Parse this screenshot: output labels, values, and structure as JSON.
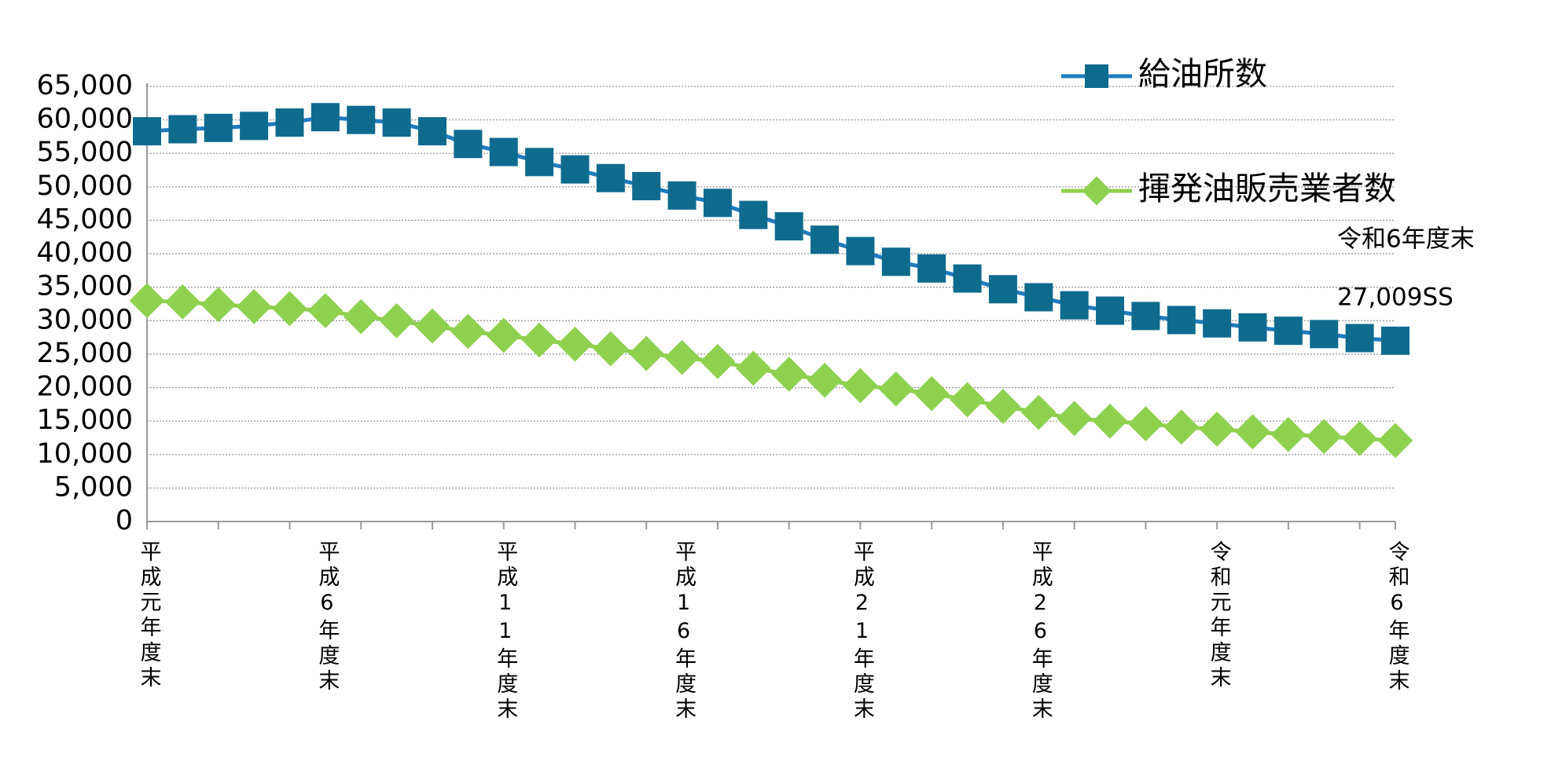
{
  "chart_data": {
    "type": "line",
    "categories": [
      "平成元年度末",
      null,
      null,
      null,
      null,
      "平成6年度末",
      null,
      null,
      null,
      null,
      "平成11年度末",
      null,
      null,
      null,
      null,
      "平成16年度末",
      null,
      null,
      null,
      null,
      "平成21年度末",
      null,
      null,
      null,
      null,
      "平成26年度末",
      null,
      null,
      null,
      null,
      "令和元年度末",
      null,
      null,
      null,
      null,
      "令和6年度末"
    ],
    "series": [
      {
        "name": "給油所数",
        "color": "#0e6b8e",
        "marker": "square",
        "line_color": "#1f7bc0",
        "values": [
          58300,
          58600,
          58800,
          59100,
          59600,
          60400,
          59990,
          59600,
          58300,
          56400,
          55200,
          53700,
          52600,
          51300,
          50100,
          48700,
          47600,
          45800,
          44100,
          42100,
          40400,
          38800,
          37800,
          36300,
          34700,
          33500,
          32300,
          31500,
          30700,
          30100,
          29600,
          29000,
          28500,
          28000,
          27400,
          27009
        ]
      },
      {
        "name": "揮発油販売業者数",
        "color": "#8fd14f",
        "marker": "diamond",
        "line_color": "#8fd14f",
        "values": [
          33000,
          32800,
          32400,
          32100,
          31800,
          31500,
          30600,
          30000,
          29200,
          28400,
          27800,
          27100,
          26500,
          25800,
          25100,
          24500,
          23900,
          22900,
          22000,
          21100,
          20300,
          19800,
          19100,
          18200,
          17200,
          16300,
          15400,
          15000,
          14600,
          14100,
          13800,
          13400,
          13000,
          12700,
          12400,
          12100
        ]
      }
    ],
    "annotations": [
      "令和6年度末",
      "27,009SS"
    ],
    "ylim": [
      0,
      65000
    ],
    "yticks": [
      0,
      {
        "value": 5000,
        "label": "5,000"
      },
      {
        "value": 10000,
        "label": "10,000"
      },
      {
        "value": 15000,
        "label": "15,000"
      },
      {
        "value": 20000,
        "label": "20,000"
      },
      {
        "value": 25000,
        "label": "25,000"
      },
      {
        "value": 30000,
        "label": "30,000"
      },
      {
        "value": 35000,
        "label": "35,000"
      },
      {
        "value": 40000,
        "label": "40,000"
      },
      {
        "value": 45000,
        "label": "45,000"
      },
      {
        "value": 50000,
        "label": "50,000"
      },
      {
        "value": 55000,
        "label": "55,000"
      },
      {
        "value": 60000,
        "label": "60,000"
      },
      {
        "value": 65000,
        "label": "65,000"
      }
    ],
    "grid": true
  }
}
